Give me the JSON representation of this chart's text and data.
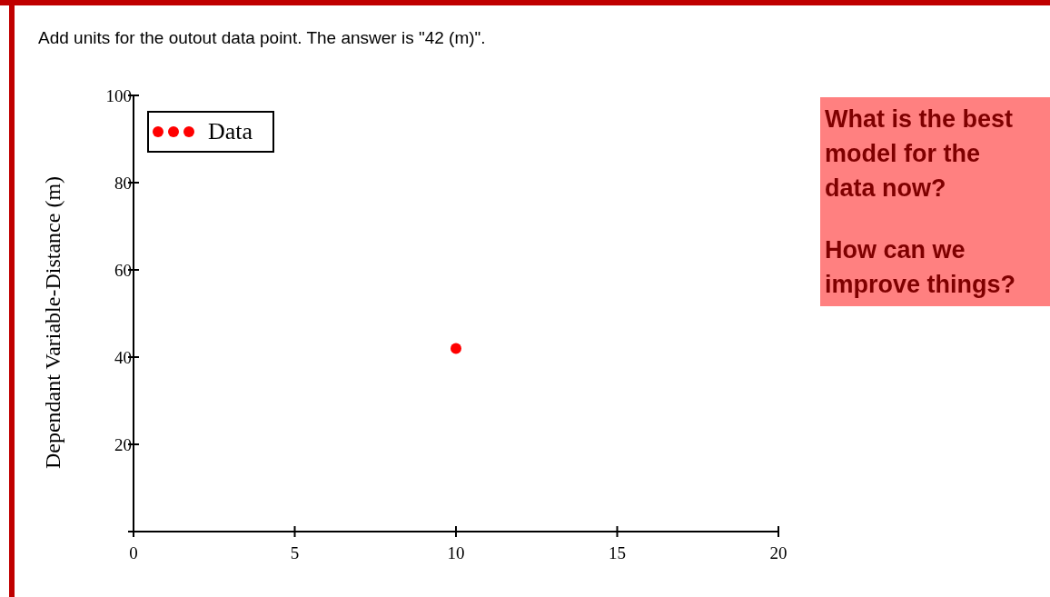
{
  "chart_data": {
    "type": "scatter",
    "title": "Add units for the outout data point.  The answer is \"42 (m)\".",
    "ylabel": "Dependant Variable-Distance (m)",
    "annotations": [
      "What is the best model for the data now?",
      "How can we improve things?"
    ],
    "x": [
      10
    ],
    "series": [
      {
        "name": "Data",
        "color": "#ff0000",
        "values": [
          42
        ]
      }
    ],
    "xlim": [
      0,
      20
    ],
    "xticks": [
      0,
      5,
      10,
      15,
      20
    ],
    "ylim": [
      0,
      100
    ],
    "yticks": [
      20,
      40,
      60,
      80,
      100
    ],
    "marker": "circle",
    "legend": "top left",
    "grid": false
  }
}
